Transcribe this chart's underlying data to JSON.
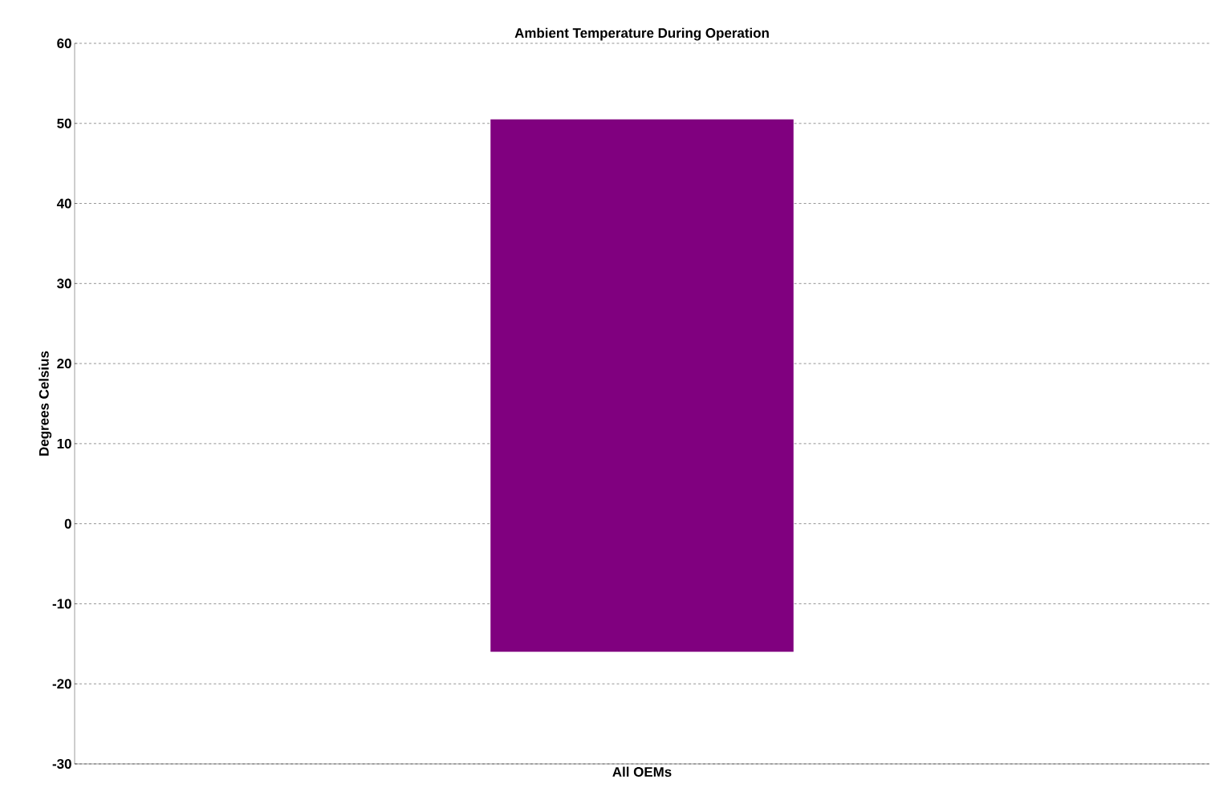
{
  "chart_data": {
    "type": "bar",
    "title": "Ambient Temperature During Operation",
    "ylabel": "Degrees Celsius",
    "categories": [
      "All OEMs"
    ],
    "values": [
      66.5
    ],
    "base": [
      -16
    ],
    "color": "#80007f",
    "ylim": [
      -30,
      60
    ],
    "yticks": [
      -30,
      -20,
      -10,
      0,
      10,
      20,
      30,
      40,
      50,
      60
    ],
    "grid": "y"
  }
}
